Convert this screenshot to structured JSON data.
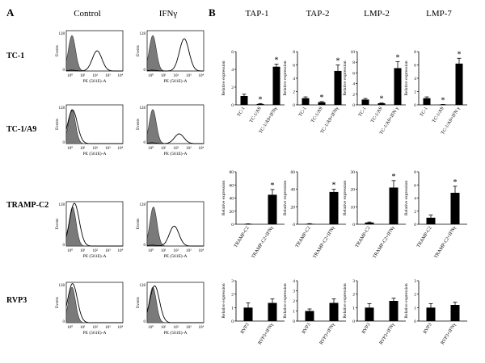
{
  "panel_a": {
    "label": "A",
    "col_labels": [
      "Control",
      "IFNγ"
    ],
    "row_labels": [
      "TC-1",
      "TC-1/A9",
      "TRAMP-C2",
      "RVP3"
    ],
    "y_axis_label": "Events",
    "x_axis_label": "PE (561E)-A",
    "x_tick_labels": [
      "10⁰",
      "10¹",
      "10²",
      "10³",
      "10⁴"
    ],
    "y_max_tick": "128"
  },
  "panel_b": {
    "label": "B",
    "col_labels": [
      "TAP-1",
      "TAP-2",
      "LMP-2",
      "LMP-7"
    ],
    "y_axis_label": "Relative expression"
  },
  "chart_data": [
    {
      "type": "bar",
      "row": "TC-1",
      "gene": "TAP-1",
      "categories": [
        "TC-1",
        "TC-1/A9",
        "TC-1/A9+IFNγ"
      ],
      "values": [
        1.0,
        0.1,
        4.3
      ],
      "errors": [
        0.2,
        0.05,
        0.3
      ],
      "significant": [
        false,
        true,
        true
      ],
      "ylim": [
        0,
        6
      ],
      "yticks": [
        "0",
        "2",
        "4",
        "6"
      ],
      "ylabel": "Relative expression"
    },
    {
      "type": "bar",
      "row": "TC-1",
      "gene": "TAP-2",
      "categories": [
        "TC-1",
        "TC-1/A9",
        "TC-1/A9+IFNγ"
      ],
      "values": [
        1.0,
        0.4,
        5.1
      ],
      "errors": [
        0.2,
        0.1,
        0.9
      ],
      "significant": [
        false,
        true,
        true
      ],
      "ylim": [
        0,
        8
      ],
      "yticks": [
        "0",
        "2",
        "4",
        "6",
        "8"
      ],
      "ylabel": "Relative expression"
    },
    {
      "type": "bar",
      "row": "TC-1",
      "gene": "LMP-2",
      "categories": [
        "TC-1",
        "TC-1/A9",
        "TC-1/A9+IFN γ"
      ],
      "values": [
        1.0,
        0.3,
        6.9
      ],
      "errors": [
        0.2,
        0.05,
        1.2
      ],
      "significant": [
        false,
        true,
        true
      ],
      "ylim": [
        0,
        10
      ],
      "yticks": [
        "0",
        "2",
        "4",
        "6",
        "8",
        "10"
      ],
      "ylabel": "Relative expression"
    },
    {
      "type": "bar",
      "row": "TC-1",
      "gene": "LMP-7",
      "categories": [
        "TC-1",
        "TC-1/A9",
        "TC-1/A9+IFN γ"
      ],
      "values": [
        1.0,
        0.05,
        6.2
      ],
      "errors": [
        0.2,
        0.02,
        0.8
      ],
      "significant": [
        false,
        true,
        true
      ],
      "ylim": [
        0,
        8
      ],
      "yticks": [
        "0",
        "2",
        "4",
        "6",
        "8"
      ],
      "ylabel": "Relative expression"
    },
    {
      "type": "bar",
      "row": "TRAMP-C2",
      "gene": "TAP-1",
      "categories": [
        "TRAMP-C2",
        "TRAMP-C2+IFNγ"
      ],
      "values": [
        0.5,
        45
      ],
      "errors": [
        0.2,
        8
      ],
      "significant": [
        false,
        true
      ],
      "ylim": [
        0,
        80
      ],
      "yticks": [
        "0",
        "20",
        "40",
        "60",
        "80"
      ],
      "ylabel": "Relative expression"
    },
    {
      "type": "bar",
      "row": "TRAMP-C2",
      "gene": "TAP-2",
      "categories": [
        "TRAMP-C2",
        "TRAMP-C2+IFNγ"
      ],
      "values": [
        0.5,
        37
      ],
      "errors": [
        0.2,
        3
      ],
      "significant": [
        false,
        true
      ],
      "ylim": [
        0,
        60
      ],
      "yticks": [
        "0",
        "20",
        "40",
        "60"
      ],
      "ylabel": "Relative expression"
    },
    {
      "type": "bar",
      "row": "TRAMP-C2",
      "gene": "LMP-2",
      "categories": [
        "TRAMP-C2",
        "TRAMP-C2+IFNγ"
      ],
      "values": [
        1.0,
        21
      ],
      "errors": [
        0.3,
        4
      ],
      "significant": [
        false,
        true
      ],
      "ylim": [
        0,
        30
      ],
      "yticks": [
        "0",
        "10",
        "20",
        "30"
      ],
      "ylabel": "Relative expression"
    },
    {
      "type": "bar",
      "row": "TRAMP-C2",
      "gene": "LMP-7",
      "categories": [
        "TRAMP-C2",
        "TRAMP-C2+IFNγ"
      ],
      "values": [
        1.0,
        4.8
      ],
      "errors": [
        0.4,
        1.0
      ],
      "significant": [
        false,
        true
      ],
      "ylim": [
        0,
        8
      ],
      "yticks": [
        "0",
        "2",
        "4",
        "6",
        "8"
      ],
      "ylabel": "Relative expression"
    },
    {
      "type": "bar",
      "row": "RVP3",
      "gene": "TAP-1",
      "categories": [
        "RVP3",
        "RVP3+IFNγ"
      ],
      "values": [
        1.0,
        1.35
      ],
      "errors": [
        0.35,
        0.3
      ],
      "significant": [
        false,
        false
      ],
      "ylim": [
        0,
        3
      ],
      "yticks": [
        "0",
        "1",
        "2",
        "3"
      ],
      "ylabel": "Relative expression"
    },
    {
      "type": "bar",
      "row": "RVP3",
      "gene": "TAP-2",
      "categories": [
        "RVP3",
        "RVP3+IFNγ"
      ],
      "values": [
        1.0,
        1.8
      ],
      "errors": [
        0.2,
        0.4
      ],
      "significant": [
        false,
        false
      ],
      "ylim": [
        0,
        4
      ],
      "yticks": [
        "0",
        "1",
        "2",
        "3",
        "4"
      ],
      "ylabel": "Relative expression"
    },
    {
      "type": "bar",
      "row": "RVP3",
      "gene": "LMP-2",
      "categories": [
        "RVP3",
        "RVP3+IFNγ"
      ],
      "values": [
        1.0,
        1.5
      ],
      "errors": [
        0.3,
        0.2
      ],
      "significant": [
        false,
        false
      ],
      "ylim": [
        0,
        3
      ],
      "yticks": [
        "0",
        "1",
        "2",
        "3"
      ],
      "ylabel": "Relative expression"
    },
    {
      "type": "bar",
      "row": "RVP3",
      "gene": "LMP-7",
      "categories": [
        "RVP3",
        "RVP3+IFNγ"
      ],
      "values": [
        1.0,
        1.2
      ],
      "errors": [
        0.3,
        0.2
      ],
      "significant": [
        false,
        false
      ],
      "ylim": [
        0,
        3
      ],
      "yticks": [
        "0",
        "1",
        "2",
        "3"
      ],
      "ylabel": "Relative expression"
    }
  ],
  "histograms": [
    {
      "row": "TC-1",
      "condition": "Control",
      "shaded_peak_decade": 0.45,
      "open_peak_decade": 2.45,
      "open_relative_height": 0.5
    },
    {
      "row": "TC-1",
      "condition": "IFNγ",
      "shaded_peak_decade": 0.45,
      "open_peak_decade": 2.95,
      "open_relative_height": 0.8
    },
    {
      "row": "TC-1/A9",
      "condition": "Control",
      "shaded_peak_decade": 0.45,
      "open_peak_decade": 0.5,
      "open_relative_height": 0.85
    },
    {
      "row": "TC-1/A9",
      "condition": "IFNγ",
      "shaded_peak_decade": 0.45,
      "open_peak_decade": 2.55,
      "open_relative_height": 0.25
    },
    {
      "row": "TRAMP-C2",
      "condition": "Control",
      "shaded_peak_decade": 0.5,
      "open_peak_decade": 0.65,
      "open_relative_height": 0.95
    },
    {
      "row": "TRAMP-C2",
      "condition": "IFNγ",
      "shaded_peak_decade": 0.5,
      "open_peak_decade": 2.15,
      "open_relative_height": 0.45
    },
    {
      "row": "RVP3",
      "condition": "Control",
      "shaded_peak_decade": 0.45,
      "open_peak_decade": 0.5,
      "open_relative_height": 0.95
    },
    {
      "row": "RVP3",
      "condition": "IFNγ",
      "shaded_peak_decade": 0.45,
      "open_peak_decade": 0.6,
      "open_relative_height": 0.9
    }
  ]
}
